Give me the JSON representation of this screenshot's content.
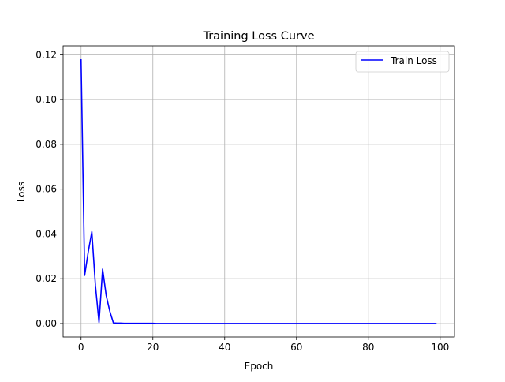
{
  "chart_data": {
    "type": "line",
    "title": "Training Loss Curve",
    "xlabel": "Epoch",
    "ylabel": "Loss",
    "xlim": [
      -5,
      104
    ],
    "ylim": [
      -0.006,
      0.124
    ],
    "xticks": [
      0,
      20,
      40,
      60,
      80,
      100
    ],
    "yticks": [
      0.0,
      0.02,
      0.04,
      0.06,
      0.08,
      0.1,
      0.12
    ],
    "xtick_labels": [
      "0",
      "20",
      "40",
      "60",
      "80",
      "100"
    ],
    "ytick_labels": [
      "0.00",
      "0.02",
      "0.04",
      "0.06",
      "0.08",
      "0.10",
      "0.12"
    ],
    "grid": true,
    "legend_position": "top-right",
    "series": [
      {
        "name": "Train Loss",
        "color": "#0000ff",
        "x": [
          0,
          1,
          2,
          3,
          4,
          5,
          6,
          7,
          8,
          9,
          10,
          11,
          12,
          13,
          14,
          15,
          16,
          17,
          18,
          19,
          20,
          21,
          22,
          23,
          24,
          25,
          26,
          27,
          28,
          29,
          30,
          31,
          32,
          33,
          34,
          35,
          36,
          37,
          38,
          39,
          40,
          41,
          42,
          43,
          44,
          45,
          46,
          47,
          48,
          49,
          50,
          51,
          52,
          53,
          54,
          55,
          56,
          57,
          58,
          59,
          60,
          61,
          62,
          63,
          64,
          65,
          66,
          67,
          68,
          69,
          70,
          71,
          72,
          73,
          74,
          75,
          76,
          77,
          78,
          79,
          80,
          81,
          82,
          83,
          84,
          85,
          86,
          87,
          88,
          89,
          90,
          91,
          92,
          93,
          94,
          95,
          96,
          97,
          98,
          99
        ],
        "values": [
          0.118,
          0.0215,
          0.032,
          0.041,
          0.017,
          0.0005,
          0.0243,
          0.0125,
          0.0055,
          0.0003,
          0.0002,
          0.0002,
          0.0001,
          0.0001,
          0.0001,
          0.0001,
          0.0001,
          0.0001,
          0.0001,
          0.0001,
          0.0001,
          0.0,
          0.0,
          0.0,
          0.0,
          0.0,
          0.0,
          0.0,
          0.0,
          0.0,
          0.0,
          0.0,
          0.0,
          0.0,
          0.0,
          0.0,
          0.0,
          0.0,
          0.0,
          0.0,
          0.0,
          0.0,
          0.0,
          0.0,
          0.0,
          0.0,
          0.0,
          0.0,
          0.0,
          0.0,
          0.0,
          0.0,
          0.0,
          0.0,
          0.0,
          0.0,
          0.0,
          0.0,
          0.0,
          0.0,
          0.0,
          0.0,
          0.0,
          0.0,
          0.0,
          0.0,
          0.0,
          0.0,
          0.0,
          0.0,
          0.0,
          0.0,
          0.0,
          0.0,
          0.0,
          0.0,
          0.0,
          0.0,
          0.0,
          0.0,
          0.0,
          0.0,
          0.0,
          0.0,
          0.0,
          0.0,
          0.0,
          0.0,
          0.0,
          0.0,
          0.0,
          0.0,
          0.0,
          0.0,
          0.0,
          0.0,
          0.0,
          0.0,
          0.0,
          0.0
        ]
      }
    ]
  }
}
